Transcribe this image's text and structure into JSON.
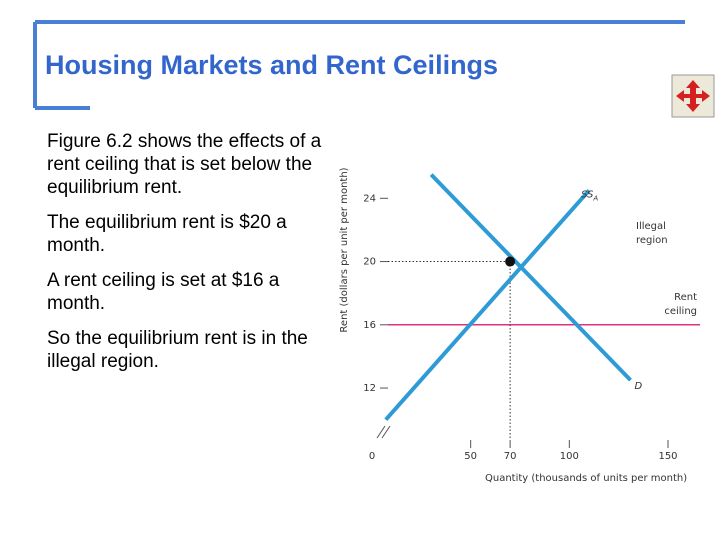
{
  "header": {
    "title": "Housing Markets and Rent Ceilings"
  },
  "bullets": [
    "Figure 6.2 shows the effects of a rent ceiling that is set below the equilibrium rent.",
    "The equilibrium rent is $20 a month.",
    "A rent ceiling is set at $16 a month.",
    "So the equilibrium rent is in the illegal region."
  ],
  "chart_data": {
    "type": "line",
    "xlabel": "Quantity (thousands of units per month)",
    "ylabel": "Rent (dollars per unit per month)",
    "xlim": [
      0,
      150
    ],
    "ylim": [
      9.6,
      25.6
    ],
    "xticks": [
      0,
      50,
      70,
      100,
      150
    ],
    "yticks": [
      12,
      16,
      20,
      24
    ],
    "series": [
      {
        "name": "SS",
        "name_subscript": "A",
        "color": "#2e9bd6",
        "x": [
          7,
          110
        ],
        "values": [
          10,
          24.5
        ]
      },
      {
        "name": "D",
        "color": "#2e9bd6",
        "x": [
          30,
          131
        ],
        "values": [
          25.5,
          12.5
        ]
      }
    ],
    "ceiling": {
      "value": 16,
      "color": "#e0307f",
      "label": [
        "Rent",
        "ceiling"
      ]
    },
    "equilibrium": {
      "x": 70,
      "y": 20
    },
    "annotations": [
      {
        "text": [
          "Illegal",
          "region"
        ]
      }
    ]
  }
}
